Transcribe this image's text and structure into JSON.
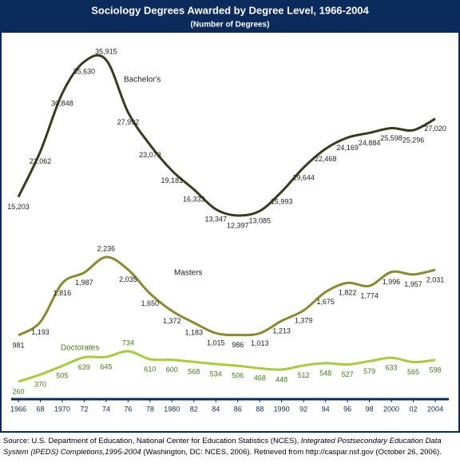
{
  "chart_data": {
    "type": "line",
    "title": "Sociology Degrees Awarded by Degree Level, 1966-2004",
    "subtitle": "(Number of Degrees)",
    "x": [
      1966,
      1968,
      1970,
      1972,
      1974,
      1976,
      1978,
      1980,
      1982,
      1984,
      1986,
      1988,
      1990,
      1992,
      1994,
      1996,
      1998,
      2000,
      2002,
      2004
    ],
    "xlim": [
      1966,
      2004
    ],
    "xticks": [
      1966,
      {
        "value": 1968,
        "label": "68"
      },
      {
        "value": 1970,
        "label": "1970"
      },
      {
        "value": 1972,
        "label": "72"
      },
      {
        "value": 1974,
        "label": "74"
      },
      {
        "value": 1976,
        "label": "76"
      },
      {
        "value": 1978,
        "label": "78"
      },
      1980,
      {
        "value": 1982,
        "label": "82"
      },
      {
        "value": 1984,
        "label": "84"
      },
      {
        "value": 1986,
        "label": "86"
      },
      {
        "value": 1988,
        "label": "88"
      },
      1990,
      {
        "value": 1992,
        "label": "92"
      },
      {
        "value": 1994,
        "label": "94"
      },
      {
        "value": 1996,
        "label": "96"
      },
      {
        "value": 1998,
        "label": "98"
      },
      2000,
      {
        "value": 2002,
        "label": "02"
      },
      2004
    ],
    "series": [
      {
        "name": "Bachelor's",
        "color": "#3b3a1c",
        "values": [
          15203,
          22062,
          30848,
          35630,
          35915,
          27992,
          23073,
          19181,
          16333,
          13347,
          12397,
          13085,
          15993,
          19644,
          22468,
          24169,
          24884,
          25598,
          25296,
          27020
        ],
        "value_labels": [
          "15,203",
          "22,062",
          "30,848",
          "35,630",
          "35,915",
          "27,992",
          "23,073",
          "19,181",
          "16,333",
          "13,347",
          "12,397",
          "13,085",
          "15,993",
          "19,644",
          "22,468",
          "24,169",
          "24,884",
          "25,598",
          "25,296",
          "27,020"
        ]
      },
      {
        "name": "Masters",
        "color": "#8c8a2c",
        "values": [
          981,
          1193,
          1816,
          1987,
          2236,
          2035,
          1650,
          1372,
          1183,
          1015,
          986,
          1013,
          1213,
          1379,
          1675,
          1822,
          1774,
          1996,
          1957,
          2031
        ],
        "value_labels": [
          "981",
          "1,193",
          "1,816",
          "1,987",
          "2,236",
          "2,035",
          "1,650",
          "1,372",
          "1,183",
          "1,015",
          "986",
          "1,013",
          "1,213",
          "1,379",
          "1,675",
          "1,822",
          "1,774",
          "1,996",
          "1,957",
          "2,031"
        ]
      },
      {
        "name": "Doctorates",
        "color": "#a8cc3a",
        "values": [
          260,
          370,
          505,
          639,
          645,
          734,
          610,
          600,
          568,
          534,
          506,
          468,
          448,
          512,
          548,
          527,
          579,
          633,
          565,
          598
        ]
      }
    ]
  },
  "source": [
    "Source: U.S. Department of Education, National Center for Education Statistics (NCES), ",
    "Integrated Postsecondary Education Data System (IPEDS) Completions,1995-2004",
    " (Washington, DC: NCES, 2006). Retrieved from http://caspar.nsf.gov (October 26, 2006)."
  ]
}
